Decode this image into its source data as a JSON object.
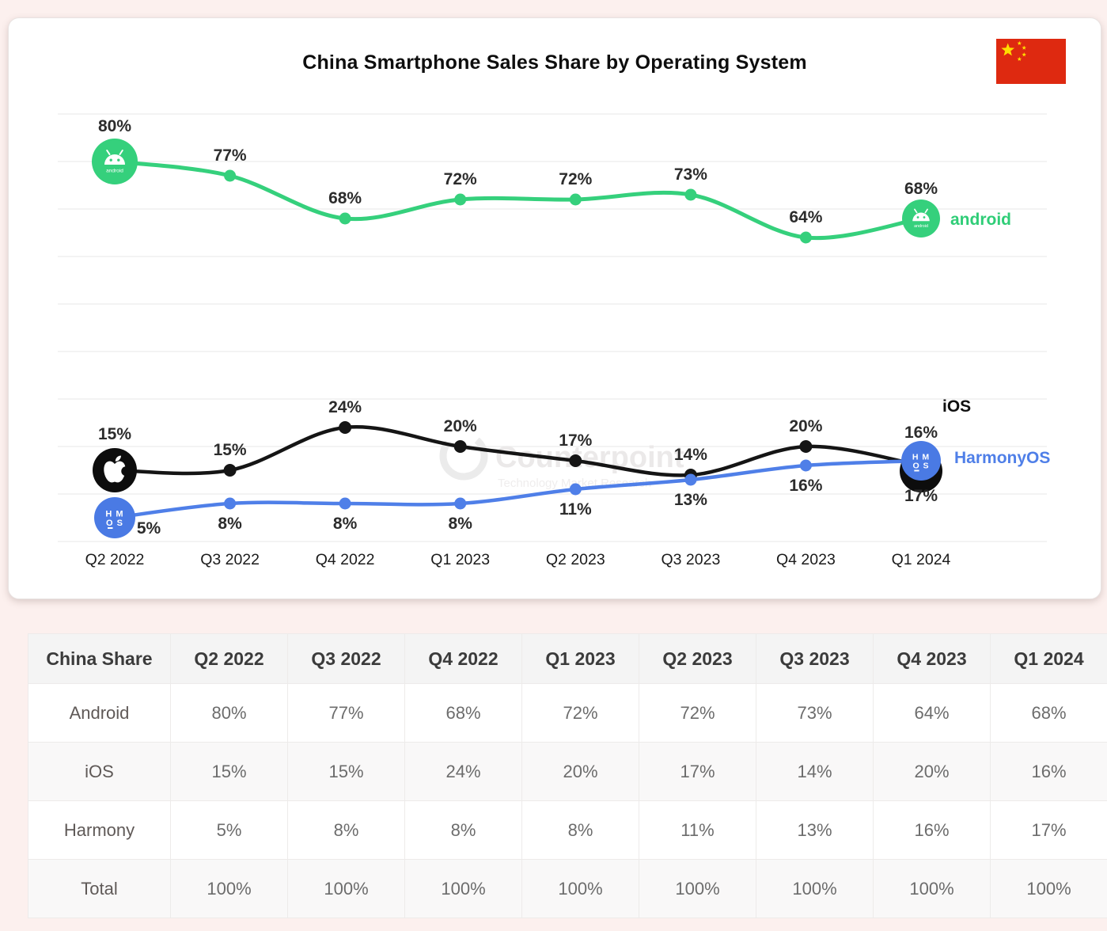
{
  "page": {
    "background_color": "#fcf0ee",
    "card_color": "#ffffff"
  },
  "chart_data": {
    "type": "line",
    "title": "China Smartphone Sales Share by Operating System",
    "categories": [
      "Q2 2022",
      "Q3 2022",
      "Q4 2022",
      "Q1 2023",
      "Q2 2023",
      "Q3 2023",
      "Q4 2023",
      "Q1 2024"
    ],
    "series": [
      {
        "name": "Android",
        "end_label": "android",
        "color": "#35d07c",
        "icon": "android-icon",
        "values": [
          80,
          77,
          68,
          72,
          72,
          73,
          64,
          68
        ]
      },
      {
        "name": "iOS",
        "end_label": "iOS",
        "color": "#151515",
        "icon": "apple-icon",
        "values": [
          15,
          15,
          24,
          20,
          17,
          14,
          20,
          16
        ]
      },
      {
        "name": "HarmonyOS",
        "end_label": "HarmonyOS",
        "color": "#4f7fe8",
        "icon": "harmonyos-icon",
        "values": [
          5,
          8,
          8,
          8,
          11,
          13,
          16,
          17
        ]
      }
    ],
    "ylim": [
      0,
      95
    ],
    "grid": "horizontal every 10%",
    "data_labels": "percent",
    "legend_position": "line-endpoints",
    "watermark": {
      "line1": "Counterpoint",
      "line2": "Technology Market Research"
    },
    "flag": "China"
  },
  "table": {
    "header": [
      "China Share",
      "Q2 2022",
      "Q3 2022",
      "Q4 2022",
      "Q1 2023",
      "Q2 2023",
      "Q3 2023",
      "Q4 2023",
      "Q1 2024"
    ],
    "rows": [
      {
        "label": "Android",
        "values": [
          "80%",
          "77%",
          "68%",
          "72%",
          "72%",
          "73%",
          "64%",
          "68%"
        ]
      },
      {
        "label": "iOS",
        "values": [
          "15%",
          "15%",
          "24%",
          "20%",
          "17%",
          "14%",
          "20%",
          "16%"
        ]
      },
      {
        "label": "Harmony",
        "values": [
          "5%",
          "8%",
          "8%",
          "8%",
          "11%",
          "13%",
          "16%",
          "17%"
        ]
      },
      {
        "label": "Total",
        "values": [
          "100%",
          "100%",
          "100%",
          "100%",
          "100%",
          "100%",
          "100%",
          "100%"
        ]
      }
    ]
  }
}
